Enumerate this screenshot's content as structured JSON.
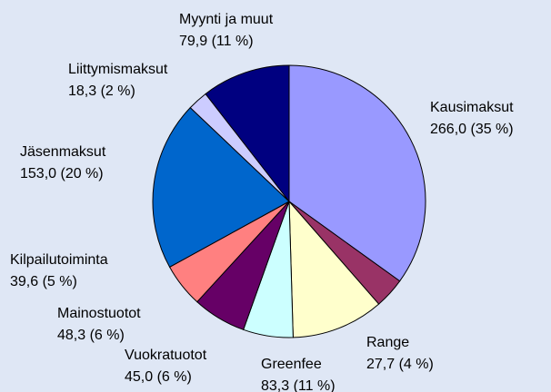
{
  "chart_data": {
    "type": "pie",
    "categories": [
      "Kausimaksut",
      "Range",
      "Greenfee",
      "Vuokratuotot",
      "Mainostuotot",
      "Kilpailutoiminta",
      "Jäsenmaksut",
      "Liittymismaksut",
      "Myynti ja muut"
    ],
    "values": [
      266.0,
      27.7,
      83.3,
      45.0,
      48.3,
      39.6,
      153.0,
      18.3,
      79.9
    ],
    "value_labels": [
      "266,0 (35 %)",
      "27,7 (4 %)",
      "83,3 (11 %)",
      "45,0 (6 %)",
      "48,3 (6 %)",
      "39,6 (5 %)",
      "153,0 (20 %)",
      "18,3 (2 %)",
      "79,9 (11 %)"
    ],
    "colors": [
      "#9999ff",
      "#993366",
      "#ffffcc",
      "#ccffff",
      "#660066",
      "#ff8080",
      "#0066cc",
      "#ccccff",
      "#000080"
    ]
  }
}
